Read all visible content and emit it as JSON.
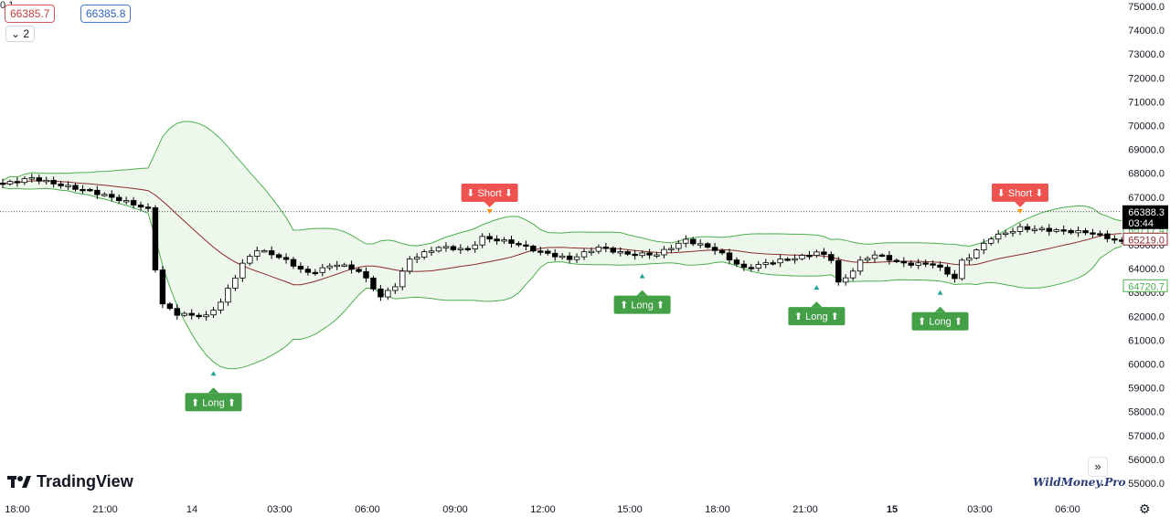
{
  "header": {
    "bid": "66385.7",
    "spread": "0.1",
    "ask": "66385.8",
    "lot_label": "2"
  },
  "branding": {
    "logo_text": "TradingView",
    "watermark": "WildMoney.Pro"
  },
  "icons": [
    "chevron-down-icon",
    "tradingview-logo-icon",
    "goto-realtime-icon",
    "settings-icon",
    "arrow-up-icon",
    "arrow-down-icon"
  ],
  "colors": {
    "bull_candle": "#ffffff",
    "bear_candle": "#000000",
    "band_line": "#4caf50",
    "band_fill": "#eef7ec",
    "basis_line": "#8d2a2a",
    "long_signal": "#43a047",
    "short_signal": "#ef5350",
    "current_price_bg": "#000000"
  },
  "chart_data": {
    "type": "candlestick",
    "ylim": [
      55000,
      75000
    ],
    "y_ticks": [
      "75000.0",
      "74000.0",
      "73000.0",
      "72000.0",
      "71000.0",
      "70000.0",
      "69000.0",
      "68000.0",
      "67000.0",
      "66000.0",
      "65000.0",
      "64000.0",
      "63000.0",
      "62000.0",
      "61000.0",
      "60000.0",
      "59000.0",
      "58000.0",
      "57000.0",
      "56000.0",
      "55000.0"
    ],
    "x_labels": [
      "18:00",
      "21:00",
      "14",
      "03:00",
      "06:00",
      "09:00",
      "12:00",
      "15:00",
      "18:00",
      "21:00",
      "15",
      "03:00",
      "06:00"
    ],
    "x_labels_bold": [
      "15"
    ],
    "current_price": "66388.3",
    "countdown": "03:44",
    "indicator_labels": {
      "upper": "65717.4",
      "basis": "65219.0",
      "lower": "64720.7"
    },
    "indicator_values": {
      "upper": 65717.4,
      "basis": 65219.0,
      "lower": 64720.7
    },
    "signals": [
      {
        "type": "long",
        "text": "⬆ Long ⬆",
        "index": 29
      },
      {
        "type": "short",
        "text": "⬇ Short ⬇",
        "index": 67
      },
      {
        "type": "long",
        "text": "⬆ Long ⬆",
        "index": 88
      },
      {
        "type": "long",
        "text": "⬆ Long ⬆",
        "index": 112
      },
      {
        "type": "short",
        "text": "⬇ Short ⬇",
        "index": 140
      },
      {
        "type": "long",
        "text": "⬆ Long ⬆",
        "index": 129
      }
    ],
    "ohlc": [],
    "upper_band": [],
    "basis": [],
    "lower_band": []
  }
}
